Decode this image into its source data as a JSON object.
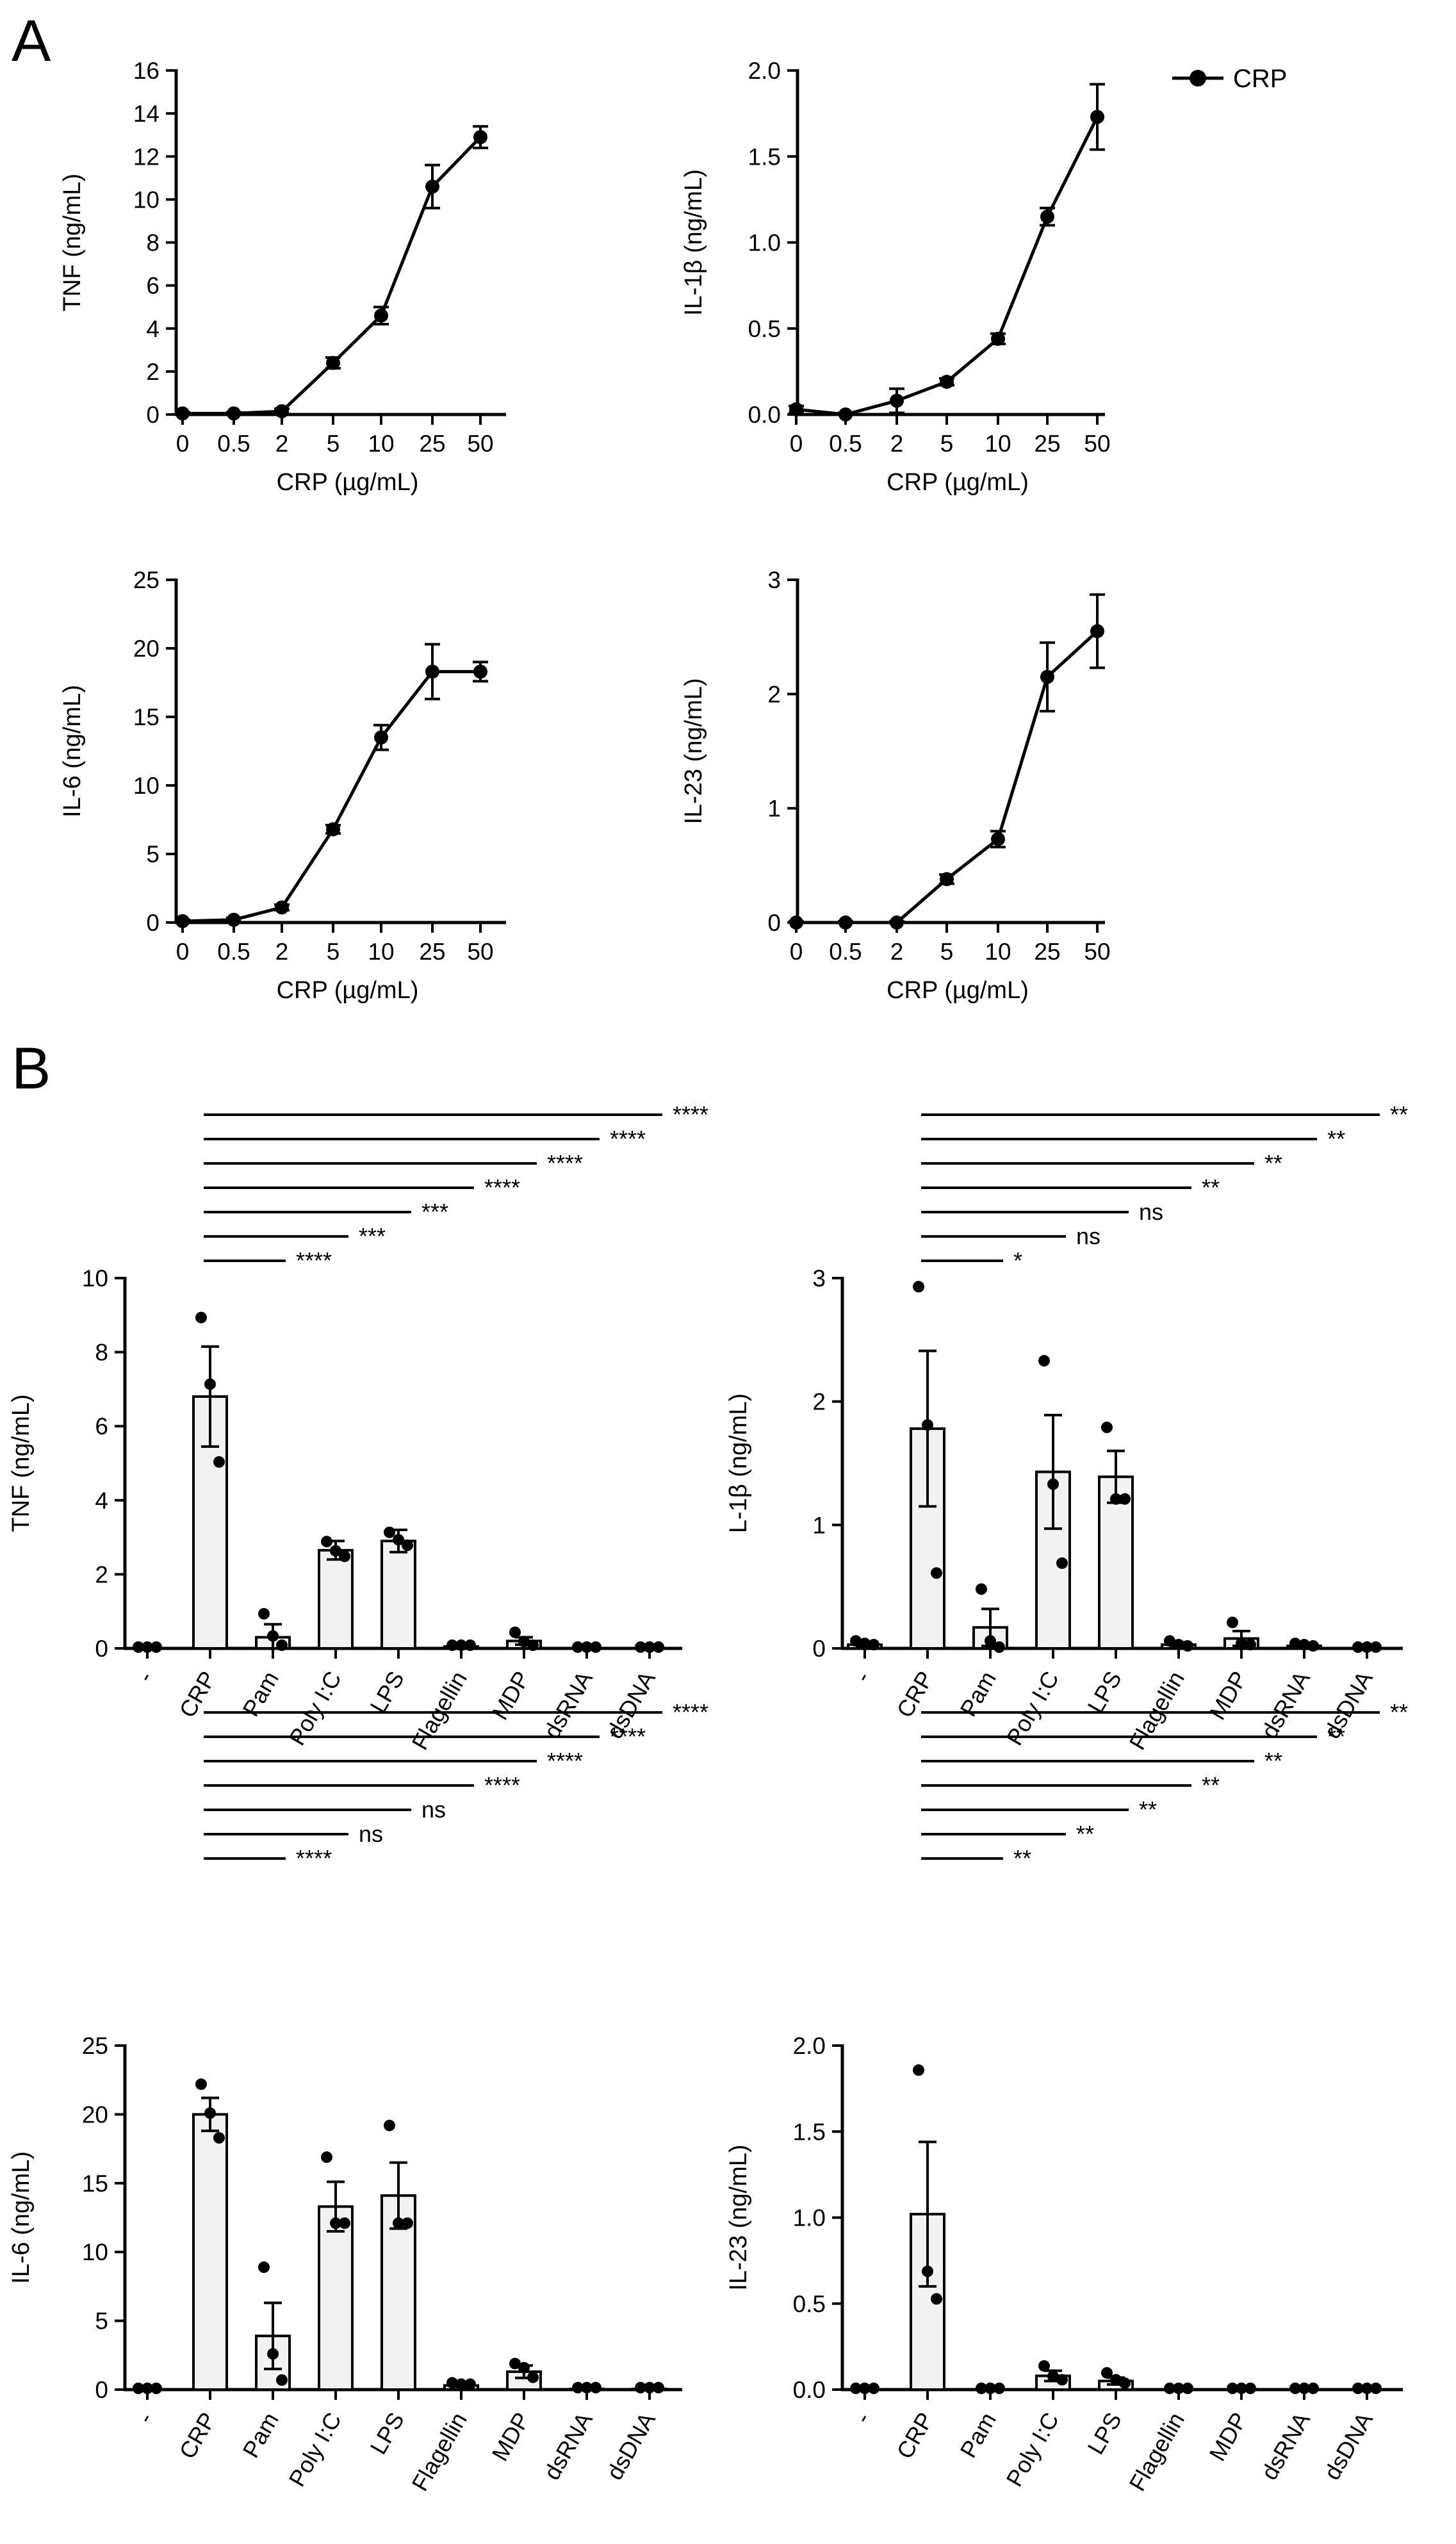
{
  "panels": {
    "a": "A",
    "b": "B"
  },
  "legend": {
    "label": "CRP"
  },
  "colors": {
    "ink": "#000000",
    "bar_fill": "#f2f2f2"
  },
  "chart_data": [
    {
      "type": "line",
      "title": "",
      "xlabel": "CRP (µg/mL)",
      "ylabel": "TNF (ng/mL)",
      "categories": [
        "0",
        "0.5",
        "2",
        "5",
        "10",
        "25",
        "50"
      ],
      "values": [
        0.05,
        0.05,
        0.15,
        2.4,
        4.6,
        10.6,
        12.9
      ],
      "errors": [
        0.05,
        0.05,
        0.12,
        0.25,
        0.4,
        1.0,
        0.5
      ],
      "ylim": [
        0,
        16
      ],
      "yticks": [
        "0",
        "2",
        "4",
        "6",
        "8",
        "10",
        "12",
        "14",
        "16"
      ]
    },
    {
      "type": "line",
      "title": "",
      "xlabel": "CRP (µg/mL)",
      "ylabel": "IL-1β (ng/mL)",
      "categories": [
        "0",
        "0.5",
        "2",
        "5",
        "10",
        "25",
        "50"
      ],
      "values": [
        0.03,
        0.0,
        0.08,
        0.19,
        0.44,
        1.15,
        1.73
      ],
      "errors": [
        0.02,
        0.01,
        0.07,
        0.02,
        0.03,
        0.05,
        0.19
      ],
      "ylim": [
        0,
        2.0
      ],
      "yticks": [
        "0.0",
        "0.5",
        "1.0",
        "1.5",
        "2.0"
      ]
    },
    {
      "type": "line",
      "title": "",
      "xlabel": "CRP (µg/mL)",
      "ylabel": "IL-6 (ng/mL)",
      "categories": [
        "0",
        "0.5",
        "2",
        "5",
        "10",
        "25",
        "50"
      ],
      "values": [
        0.1,
        0.2,
        1.1,
        6.8,
        13.5,
        18.3,
        18.3
      ],
      "errors": [
        0.1,
        0.15,
        0.2,
        0.3,
        0.9,
        2.0,
        0.7
      ],
      "ylim": [
        0,
        25
      ],
      "yticks": [
        "0",
        "5",
        "10",
        "15",
        "20",
        "25"
      ]
    },
    {
      "type": "line",
      "title": "",
      "xlabel": "CRP (µg/mL)",
      "ylabel": "IL-23 (ng/mL)",
      "categories": [
        "0",
        "0.5",
        "2",
        "5",
        "10",
        "25",
        "50"
      ],
      "values": [
        0.0,
        0.0,
        0.0,
        0.38,
        0.73,
        2.15,
        2.55
      ],
      "errors": [
        0.01,
        0.01,
        0.01,
        0.04,
        0.07,
        0.3,
        0.32
      ],
      "ylim": [
        0,
        3
      ],
      "yticks": [
        "0",
        "1",
        "2",
        "3"
      ]
    },
    {
      "type": "bar",
      "title": "",
      "xlabel": "",
      "ylabel": "TNF (ng/mL)",
      "categories": [
        "-",
        "CRP",
        "Pam",
        "Poly I:C",
        "LPS",
        "Flagellin",
        "MDP",
        "dsRNA",
        "dsDNA"
      ],
      "values": [
        0.0,
        6.8,
        0.3,
        2.65,
        2.9,
        0.05,
        0.2,
        0.0,
        0.0
      ],
      "errors": [
        0.0,
        1.35,
        0.35,
        0.25,
        0.3,
        0.02,
        0.1,
        0.0,
        0.0
      ],
      "points": [
        [
          0,
          0,
          0
        ],
        [
          8.9,
          7.1,
          5.0
        ],
        [
          0.9,
          0.3,
          0.05
        ],
        [
          2.85,
          2.6,
          2.45
        ],
        [
          3.1,
          2.9,
          2.75
        ],
        [
          0.05,
          0.05,
          0.05
        ],
        [
          0.4,
          0.15,
          0.05
        ],
        [
          0,
          0,
          0
        ],
        [
          0,
          0,
          0
        ]
      ],
      "ylim": [
        0,
        10
      ],
      "yticks": [
        "0",
        "2",
        "4",
        "6",
        "8",
        "10"
      ],
      "significance": [
        {
          "label": "****"
        },
        {
          "label": "***"
        },
        {
          "label": "***"
        },
        {
          "label": "****"
        },
        {
          "label": "****"
        },
        {
          "label": "****"
        },
        {
          "label": "****"
        }
      ]
    },
    {
      "type": "bar",
      "title": "",
      "xlabel": "",
      "ylabel": "L-1β (ng/mL)",
      "categories": [
        "-",
        "CRP",
        "Pam",
        "Poly I:C",
        "LPS",
        "Flagellin",
        "MDP",
        "dsRNA",
        "dsDNA"
      ],
      "values": [
        0.03,
        1.78,
        0.17,
        1.43,
        1.39,
        0.03,
        0.08,
        0.02,
        0.0
      ],
      "errors": [
        0.01,
        0.63,
        0.15,
        0.46,
        0.21,
        0.02,
        0.06,
        0.01,
        0.0
      ],
      "points": [
        [
          0.05,
          0.03,
          0.02
        ],
        [
          2.92,
          1.8,
          0.6
        ],
        [
          0.47,
          0.05,
          0.0
        ],
        [
          2.32,
          1.32,
          0.68
        ],
        [
          1.78,
          1.2,
          1.2
        ],
        [
          0.05,
          0.02,
          0.01
        ],
        [
          0.2,
          0.03,
          0.02
        ],
        [
          0.03,
          0.02,
          0.01
        ],
        [
          0,
          0,
          0
        ]
      ],
      "ylim": [
        0,
        3
      ],
      "yticks": [
        "0",
        "1",
        "2",
        "3"
      ],
      "significance": [
        {
          "label": "*"
        },
        {
          "label": "ns"
        },
        {
          "label": "ns"
        },
        {
          "label": "**"
        },
        {
          "label": "**"
        },
        {
          "label": "**"
        },
        {
          "label": "**"
        }
      ]
    },
    {
      "type": "bar",
      "title": "",
      "xlabel": "",
      "ylabel": "IL-6 (ng/mL)",
      "categories": [
        "-",
        "CRP",
        "Pam",
        "Poly I:C",
        "LPS",
        "Flagellin",
        "MDP",
        "dsRNA",
        "dsDNA"
      ],
      "values": [
        0.0,
        20.0,
        3.9,
        13.3,
        14.1,
        0.3,
        1.3,
        0.05,
        0.05
      ],
      "errors": [
        0.0,
        1.2,
        2.4,
        1.8,
        2.4,
        0.1,
        0.45,
        0.02,
        0.02
      ],
      "points": [
        [
          0,
          0,
          0
        ],
        [
          22.1,
          20.0,
          18.2
        ],
        [
          8.8,
          2.5,
          0.6
        ],
        [
          16.8,
          12.0,
          12.0
        ],
        [
          19.1,
          12.0,
          12.0
        ],
        [
          0.4,
          0.3,
          0.3
        ],
        [
          1.8,
          1.5,
          0.8
        ],
        [
          0.05,
          0.05,
          0.05
        ],
        [
          0.05,
          0.05,
          0.05
        ]
      ],
      "ylim": [
        0,
        25
      ],
      "yticks": [
        "0",
        "5",
        "10",
        "15",
        "20",
        "25"
      ],
      "significance": [
        {
          "label": "****"
        },
        {
          "label": "ns"
        },
        {
          "label": "ns"
        },
        {
          "label": "****"
        },
        {
          "label": "****"
        },
        {
          "label": "****"
        },
        {
          "label": "****"
        }
      ]
    },
    {
      "type": "bar",
      "title": "",
      "xlabel": "",
      "ylabel": "IL-23 (ng/mL)",
      "categories": [
        "-",
        "CRP",
        "Pam",
        "Poly I:C",
        "LPS",
        "Flagellin",
        "MDP",
        "dsRNA",
        "dsDNA"
      ],
      "values": [
        0.0,
        1.02,
        0.0,
        0.08,
        0.05,
        0.0,
        0.0,
        0.0,
        0.0
      ],
      "errors": [
        0.0,
        0.42,
        0.0,
        0.03,
        0.02,
        0.0,
        0.0,
        0.0,
        0.0
      ],
      "points": [
        [
          0,
          0,
          0
        ],
        [
          1.85,
          0.68,
          0.52
        ],
        [
          0,
          0,
          0
        ],
        [
          0.13,
          0.07,
          0.05
        ],
        [
          0.09,
          0.05,
          0.03
        ],
        [
          0,
          0,
          0
        ],
        [
          0,
          0,
          0
        ],
        [
          0,
          0,
          0
        ],
        [
          0,
          0,
          0
        ]
      ],
      "ylim": [
        0,
        2.0
      ],
      "yticks": [
        "0.0",
        "0.5",
        "1.0",
        "1.5",
        "2.0"
      ],
      "significance": [
        {
          "label": "**"
        },
        {
          "label": "**"
        },
        {
          "label": "**"
        },
        {
          "label": "**"
        },
        {
          "label": "**"
        },
        {
          "label": "**"
        },
        {
          "label": "**"
        }
      ]
    }
  ]
}
